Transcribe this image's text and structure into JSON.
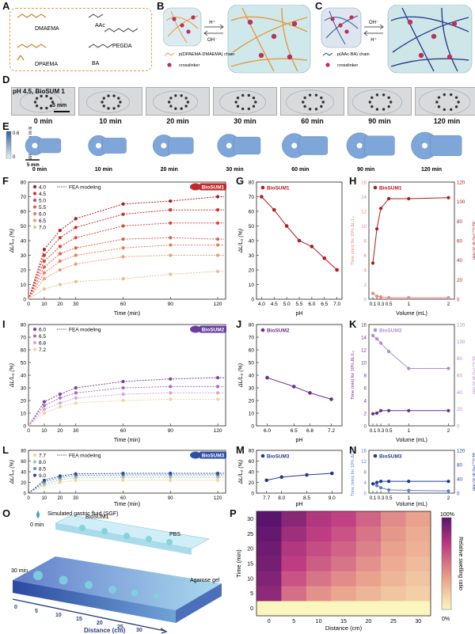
{
  "panels": {
    "A": "A",
    "B": "B",
    "C": "C",
    "D": "D",
    "E": "E",
    "F": "F",
    "G": "G",
    "H": "H",
    "I": "I",
    "J": "J",
    "K": "K",
    "L": "L",
    "M": "M",
    "N": "N",
    "O": "O",
    "P": "P"
  },
  "panelA": {
    "labels": [
      "DMAEMA",
      "AAc",
      "PEGDA",
      "DPAEMA",
      "BA"
    ]
  },
  "panelB": {
    "acid": "H⁺",
    "base": "OH⁻",
    "legend_chain": "p(DPAEMA-DMAEMA) chain",
    "legend_cross": "crosslinker"
  },
  "panelC": {
    "acid": "H⁺",
    "base": "OH⁻",
    "legend_chain": "p(AAc-BA) chain",
    "legend_cross": "crosslinker"
  },
  "panelD": {
    "condition": "pH 4.5, BioSUM 1",
    "scale": "5 mm",
    "times": [
      "0 min",
      "10 min",
      "20 min",
      "30 min",
      "60 min",
      "90 min",
      "120 min"
    ]
  },
  "panelE": {
    "scale": "5 mm",
    "colorbar_label": "stretch ratio in length",
    "cb_max": "0.6",
    "cb_min": "0",
    "times": [
      "0 min",
      "10 min",
      "20 min",
      "30 min",
      "60 min",
      "90 min",
      "120 min"
    ]
  },
  "panelF": {
    "badge": "BioSUM1",
    "fea": "FEA modeling",
    "ylabel": "ΔL/L₀ (%)",
    "xlabel": "Time (min)"
  },
  "panelI": {
    "badge": "BioSUM2",
    "fea": "FEA modeling",
    "ylabel": "ΔL/L₀ (%)",
    "xlabel": "Time (min)"
  },
  "panelL": {
    "badge": "BioSUM3",
    "fea": "FEA modeling",
    "ylabel": "ΔL/L₀ (%)",
    "xlabel": "Time (min)"
  },
  "panelO": {
    "sgf": "Simulated gastric fluid (SGF)",
    "t0": "0 min",
    "t30": "30 min",
    "biosum": "BioSUM1",
    "pbs": "PBS",
    "agarose": "Agarose gel",
    "axis": "Distance (cm)",
    "ticks": [
      "0",
      "5",
      "10",
      "15",
      "20",
      "25",
      "30"
    ]
  },
  "panelP": {
    "ylabel": "Time (min)",
    "xlabel": "Distance (cm)",
    "cbar_label": "Relative swelling ratio",
    "cbar_max": "100%",
    "cbar_min": "0%"
  },
  "chart_data": [
    {
      "panel": "F",
      "type": "line",
      "xlabel": "Time (min)",
      "ylabel": "ΔL/L₀ (%)",
      "xlim": [
        0,
        125
      ],
      "ylim": [
        0,
        80
      ],
      "xticks": [
        0,
        10,
        20,
        30,
        60,
        90,
        120
      ],
      "yticks": [
        0,
        10,
        20,
        30,
        40,
        50,
        60,
        70,
        80
      ],
      "x": [
        0,
        10,
        20,
        30,
        60,
        90,
        120
      ],
      "series": [
        {
          "name": "4.0",
          "color": "#b31b1b",
          "values": [
            0,
            34,
            47,
            55,
            65,
            67,
            70
          ]
        },
        {
          "name": "4.5",
          "color": "#c9302c",
          "values": [
            0,
            30,
            42,
            49,
            58,
            61,
            61
          ]
        },
        {
          "name": "5.0",
          "color": "#d9483b",
          "values": [
            0,
            26,
            36,
            42,
            50,
            52,
            52
          ]
        },
        {
          "name": "5.5",
          "color": "#e25f4c",
          "values": [
            0,
            22,
            31,
            35,
            41,
            42,
            41
          ]
        },
        {
          "name": "6.0",
          "color": "#ea7d5f",
          "values": [
            0,
            18,
            26,
            30,
            35,
            37,
            37
          ]
        },
        {
          "name": "6.5",
          "color": "#f09c73",
          "values": [
            0,
            14,
            20,
            24,
            29,
            30,
            30
          ]
        },
        {
          "name": "7.0",
          "color": "#f4bb8a",
          "values": [
            0,
            7,
            10,
            12,
            14,
            17,
            19
          ]
        }
      ]
    },
    {
      "panel": "G",
      "type": "line",
      "title": "BioSUM1",
      "xlabel": "pH",
      "ylabel": "ΔL/L₀ (%)",
      "ylim": [
        0,
        80
      ],
      "x": [
        4.0,
        4.5,
        5.0,
        5.5,
        6.0,
        6.5,
        7.0
      ],
      "xticks": [
        "4.0",
        "4.5",
        "5.0",
        "5.5",
        "6.0",
        "6.5",
        "7.0"
      ],
      "yticks": [
        0,
        10,
        20,
        30,
        40,
        50,
        60,
        70,
        80
      ],
      "series": [
        {
          "name": "BioSUM1",
          "color": "#b31b1b",
          "values": [
            70,
            61,
            50,
            40,
            36,
            28,
            20
          ]
        }
      ]
    },
    {
      "panel": "H",
      "type": "line",
      "title": "BioSUM1",
      "xlabel": "Volume (mL)",
      "ylabel": "Time (min) for 10% ΔL/L₀",
      "y2label": "ΔL/L₀ (%) at 30 min",
      "ylim": [
        0,
        16
      ],
      "y2lim": [
        0,
        120
      ],
      "x": [
        0.1,
        0.2,
        0.3,
        0.5,
        1,
        2
      ],
      "xticks": [
        "0.1",
        "0.2",
        "0.3",
        "0.5",
        "1",
        "2"
      ],
      "yticks": [
        0,
        2,
        4,
        6,
        8,
        10,
        12,
        14,
        16
      ],
      "y2ticks": [
        0,
        20,
        40,
        60,
        80,
        100,
        120
      ],
      "series": [
        {
          "name": "Time (min) for 10% ΔL/L₀",
          "color": "#e88a88",
          "axis": "left",
          "values": [
            0.8,
            0.4,
            0.3,
            0.2,
            0.2,
            0.2
          ]
        },
        {
          "name": "ΔL/L₀ (%) at 30 min",
          "color": "#b31b1b",
          "axis": "right",
          "values": [
            37,
            72,
            93,
            103,
            103,
            104
          ]
        }
      ]
    },
    {
      "panel": "I",
      "type": "line",
      "xlabel": "Time (min)",
      "ylabel": "ΔL/L₀ (%)",
      "xlim": [
        0,
        125
      ],
      "ylim": [
        0,
        80
      ],
      "xticks": [
        0,
        10,
        20,
        30,
        60,
        90,
        120
      ],
      "yticks": [
        0,
        10,
        20,
        30,
        40,
        50,
        60,
        70,
        80
      ],
      "x": [
        0,
        10,
        20,
        30,
        60,
        90,
        120
      ],
      "series": [
        {
          "name": "6.0",
          "color": "#7b3fa3",
          "values": [
            0,
            19,
            25,
            30,
            35,
            37,
            38
          ]
        },
        {
          "name": "6.5",
          "color": "#a96bc6",
          "values": [
            0,
            16,
            22,
            26,
            30,
            31,
            31
          ]
        },
        {
          "name": "6.8",
          "color": "#d4a6d9",
          "values": [
            0,
            13,
            18,
            22,
            25,
            26,
            26
          ]
        },
        {
          "name": "7.2",
          "color": "#f2d49a",
          "values": [
            0,
            10,
            15,
            18,
            20,
            21,
            21
          ]
        }
      ]
    },
    {
      "panel": "J",
      "type": "line",
      "title": "BioSUM2",
      "xlabel": "pH",
      "ylabel": "ΔL/L₀ (%)",
      "ylim": [
        0,
        80
      ],
      "x": [
        6.0,
        6.5,
        6.8,
        7.2
      ],
      "xticks": [
        "6.0",
        "6.5",
        "6.8",
        "7.2"
      ],
      "yticks": [
        0,
        10,
        20,
        30,
        40,
        50,
        60,
        70,
        80
      ],
      "series": [
        {
          "name": "BioSUM2",
          "color": "#6a2c91",
          "values": [
            38,
            31,
            26,
            21
          ]
        }
      ]
    },
    {
      "panel": "K",
      "type": "line",
      "title": "BioSUM2",
      "xlabel": "Volume (mL)",
      "ylabel": "Time (min) for 10% ΔL/L₀",
      "y2label": "ΔL/L₀ (%) at 30 min",
      "ylim": [
        0,
        16
      ],
      "y2lim": [
        0,
        120
      ],
      "x": [
        0.1,
        0.2,
        0.3,
        0.5,
        1,
        2
      ],
      "xticks": [
        "0.1",
        "0.2",
        "0.3",
        "0.5",
        "1",
        "2"
      ],
      "yticks": [
        0,
        2,
        4,
        6,
        8,
        10,
        12,
        14,
        16
      ],
      "y2ticks": [
        0,
        20,
        40,
        60,
        80,
        100,
        120
      ],
      "series": [
        {
          "name": "Time (min) for 10% ΔL/L₀",
          "color": "#6a2c91",
          "axis": "left",
          "values": [
            1.9,
            2.0,
            2.4,
            2.4,
            2.4,
            2.4
          ]
        },
        {
          "name": "ΔL/L₀ (%) at 30 min",
          "color": "#b48ccc",
          "axis": "right",
          "values": [
            107,
            103,
            98,
            88,
            68,
            68
          ]
        }
      ]
    },
    {
      "panel": "L",
      "type": "line",
      "xlabel": "Time (min)",
      "ylabel": "ΔL/L₀ (%)",
      "xlim": [
        0,
        125
      ],
      "ylim": [
        0,
        80
      ],
      "xticks": [
        0,
        10,
        20,
        30,
        60,
        90,
        120
      ],
      "yticks": [
        0,
        10,
        20,
        30,
        40,
        50,
        60,
        70,
        80
      ],
      "x": [
        0,
        10,
        20,
        30,
        60,
        90,
        120
      ],
      "series": [
        {
          "name": "7.7",
          "color": "#f2d49a",
          "values": [
            0,
            14,
            20,
            24,
            24,
            24,
            24
          ]
        },
        {
          "name": "8.0",
          "color": "#a7c9a6",
          "values": [
            0,
            17,
            25,
            29,
            30,
            30,
            30
          ]
        },
        {
          "name": "8.5",
          "color": "#6c8fc4",
          "values": [
            0,
            21,
            29,
            33,
            34,
            34,
            34
          ]
        },
        {
          "name": "9.0",
          "color": "#2c4a9c",
          "values": [
            0,
            24,
            32,
            36,
            37,
            37,
            37
          ]
        }
      ]
    },
    {
      "panel": "M",
      "type": "line",
      "title": "BioSUM3",
      "xlabel": "pH",
      "ylabel": "ΔL/L₀ (%)",
      "ylim": [
        0,
        80
      ],
      "x": [
        7.7,
        8.0,
        8.5,
        9.0
      ],
      "xticks": [
        "7.7",
        "8.0",
        "8.5",
        "9.0"
      ],
      "yticks": [
        0,
        10,
        20,
        30,
        40,
        50,
        60,
        70,
        80
      ],
      "series": [
        {
          "name": "BioSUM3",
          "color": "#1f3d8f",
          "values": [
            24,
            30,
            34,
            37
          ]
        }
      ]
    },
    {
      "panel": "N",
      "type": "line",
      "title": "BioSUM3",
      "xlabel": "Volume (mL)",
      "ylabel": "Time (min) for 10% ΔL/L₀",
      "y2label": "ΔL/L₀ (%) at 30 min",
      "ylim": [
        0,
        16
      ],
      "y2lim": [
        0,
        120
      ],
      "x": [
        0.1,
        0.2,
        0.3,
        0.5,
        1,
        2
      ],
      "xticks": [
        "0.1",
        "0.2",
        "0.3",
        "0.5",
        "1",
        "2"
      ],
      "yticks": [
        0,
        2,
        4,
        6,
        8,
        10,
        12,
        14,
        16
      ],
      "y2ticks": [
        0,
        20,
        40,
        60,
        80,
        100,
        120
      ],
      "series": [
        {
          "name": "Time (min) for 10% ΔL/L₀",
          "color": "#5e7fc4",
          "axis": "left",
          "values": [
            3.5,
            2.8,
            2.0,
            1.2,
            1.0,
            0.8
          ]
        },
        {
          "name": "ΔL/L₀ (%) at 30 min",
          "color": "#1f3d8f",
          "axis": "right",
          "values": [
            26,
            30,
            33,
            33,
            33,
            33
          ]
        }
      ]
    },
    {
      "panel": "P",
      "type": "heatmap",
      "xlabel": "Distance (cm)",
      "ylabel": "Time (min)",
      "x": [
        0,
        5,
        10,
        15,
        20,
        25,
        30
      ],
      "y": [
        0,
        5,
        10,
        15,
        20,
        25,
        30
      ],
      "values": [
        [
          0,
          0,
          0,
          0,
          0,
          0,
          0
        ],
        [
          0.84,
          0.52,
          0.4,
          0.32,
          0.26,
          0.2,
          0.16
        ],
        [
          0.88,
          0.62,
          0.5,
          0.42,
          0.34,
          0.26,
          0.2
        ],
        [
          0.92,
          0.7,
          0.58,
          0.5,
          0.4,
          0.3,
          0.24
        ],
        [
          0.94,
          0.74,
          0.64,
          0.56,
          0.46,
          0.34,
          0.28
        ],
        [
          0.97,
          0.8,
          0.7,
          0.62,
          0.5,
          0.38,
          0.3
        ],
        [
          1.0,
          0.86,
          0.74,
          0.68,
          0.56,
          0.42,
          0.34
        ]
      ]
    }
  ]
}
